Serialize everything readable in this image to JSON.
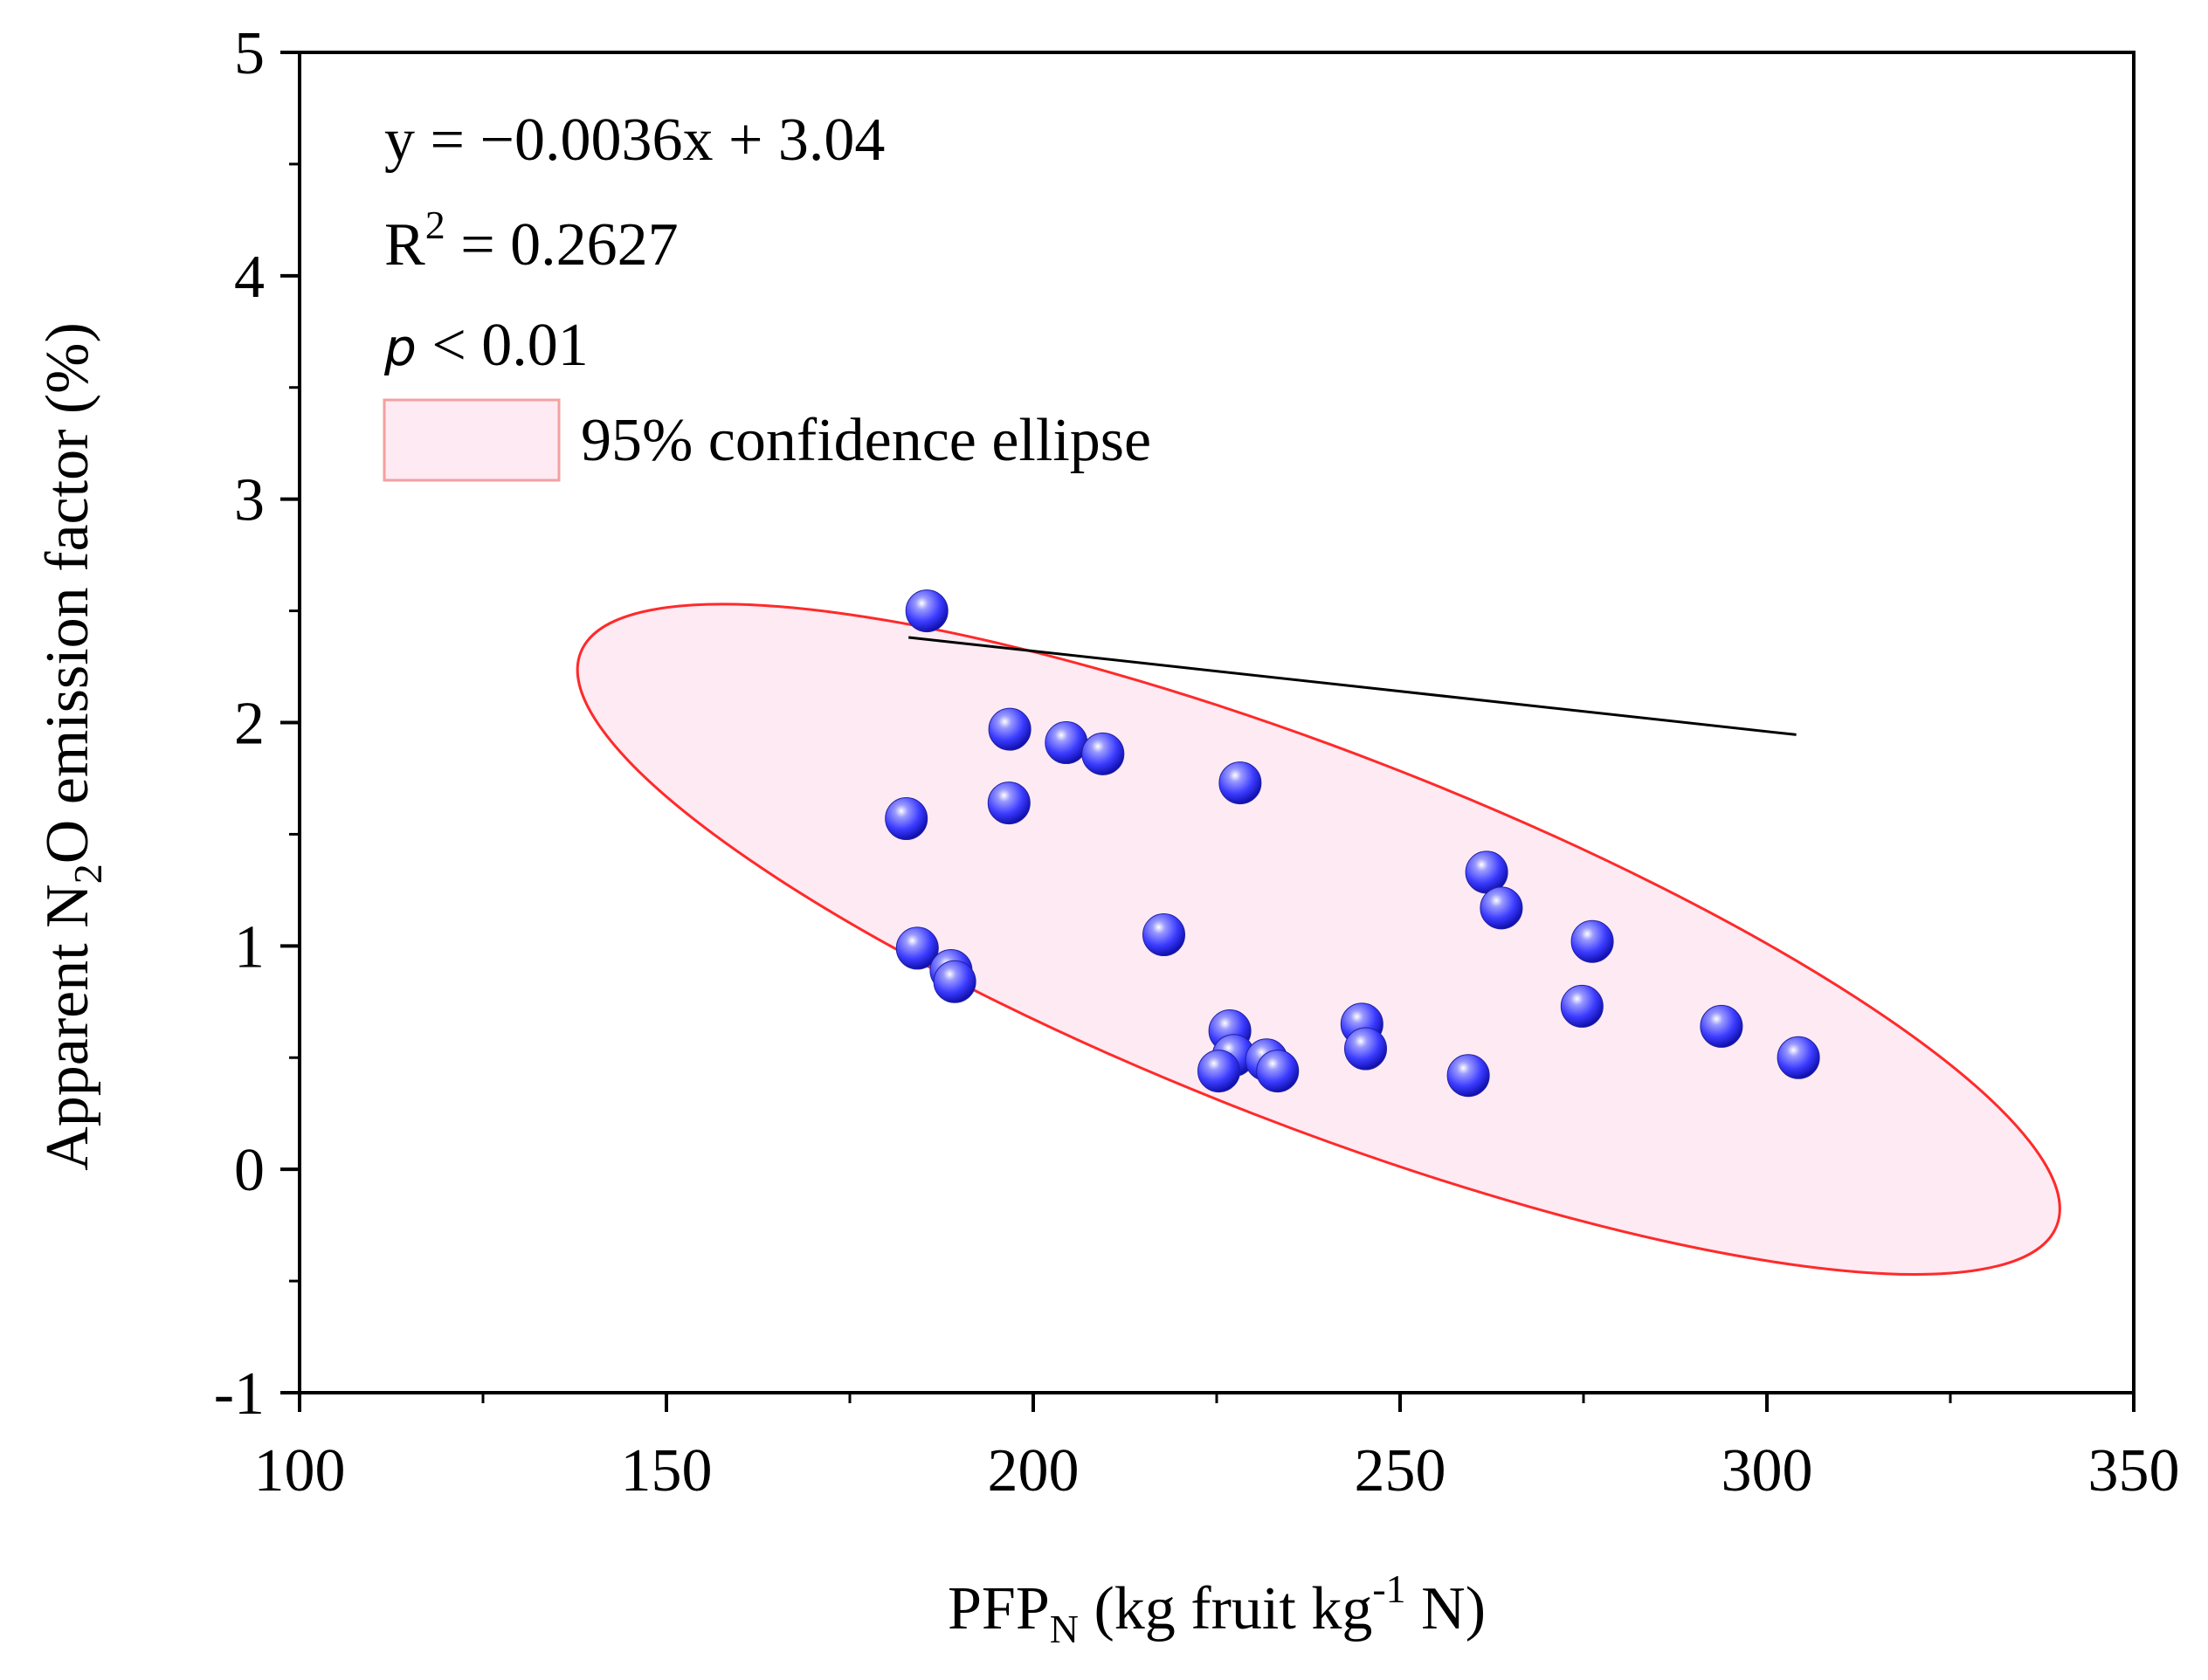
{
  "chart_data": {
    "type": "scatter",
    "xlabel": {
      "main": "PFP",
      "sub": "N",
      "mid": " (kg fruit kg",
      "sup": "-1",
      "end": " N)"
    },
    "ylabel": {
      "main": "Apparent N",
      "sub": "2",
      "end": "O emission factor (%)"
    },
    "xlim": [
      100,
      350
    ],
    "ylim": [
      -1,
      5
    ],
    "x_ticks": [
      100,
      150,
      200,
      250,
      300,
      350
    ],
    "y_ticks": [
      -1,
      0,
      1,
      2,
      3,
      4,
      5
    ],
    "x_tick_labels": [
      "100",
      "150",
      "200",
      "250",
      "300",
      "350"
    ],
    "y_tick_labels": [
      "-1",
      "0",
      "1",
      "2",
      "3",
      "4",
      "5"
    ],
    "x_minor_step": 25,
    "y_minor_step": 0.5,
    "grid": false,
    "series": [
      {
        "color": "#3b3bff",
        "points": [
          [
            185.5,
            2.5
          ],
          [
            196.8,
            1.97
          ],
          [
            204.5,
            1.91
          ],
          [
            209.5,
            1.86
          ],
          [
            228.2,
            1.73
          ],
          [
            182.7,
            1.57
          ],
          [
            196.7,
            1.64
          ],
          [
            217.8,
            1.05
          ],
          [
            184.2,
            0.99
          ],
          [
            188.8,
            0.89
          ],
          [
            189.3,
            0.84
          ],
          [
            226.8,
            0.62
          ],
          [
            227.3,
            0.51
          ],
          [
            225.3,
            0.44
          ],
          [
            231.8,
            0.49
          ],
          [
            233.3,
            0.44
          ],
          [
            244.8,
            0.65
          ],
          [
            245.3,
            0.54
          ],
          [
            259.3,
            0.42
          ],
          [
            261.8,
            1.33
          ],
          [
            263.8,
            1.17
          ],
          [
            276.2,
            1.02
          ],
          [
            274.8,
            0.73
          ],
          [
            293.8,
            0.64
          ],
          [
            304.3,
            0.5
          ]
        ]
      }
    ],
    "regression": {
      "x": [
        183,
        304
      ],
      "color": "#000000"
    },
    "confidence_ellipse": {
      "center": [
        238.9,
        1.03
      ],
      "semi_axis_major": 100.6,
      "semi_axis_minor": 0.895,
      "slope": -0.01275,
      "fill": "#fdeaf3",
      "stroke": "#ff2a2a"
    },
    "annotations": {
      "equation": "y = −0.0036x + 3.04",
      "r2_prefix": "R",
      "r2_sup": "2",
      "r2_value": " = 0.2627",
      "p_symbol": "p",
      "p_value": " < 0.01"
    },
    "legend": {
      "position": "top-left",
      "label": "95% confidence ellipse"
    }
  }
}
